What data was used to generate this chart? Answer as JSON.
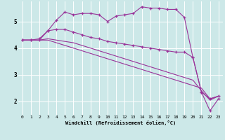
{
  "xlabel": "Windchill (Refroidissement éolien,°C)",
  "background_color": "#cce8e8",
  "line_color": "#993399",
  "grid_color": "#aadddd",
  "xlim": [
    -0.5,
    23.5
  ],
  "ylim": [
    1.5,
    5.75
  ],
  "yticks": [
    2,
    3,
    4,
    5
  ],
  "xticks": [
    0,
    1,
    2,
    3,
    4,
    5,
    6,
    7,
    8,
    9,
    10,
    11,
    12,
    13,
    14,
    15,
    16,
    17,
    18,
    19,
    20,
    21,
    22,
    23
  ],
  "line1_x": [
    0,
    1,
    2,
    3,
    4,
    5,
    6,
    7,
    8,
    9,
    10,
    11,
    12,
    13,
    14,
    15,
    16,
    17,
    18,
    19,
    20,
    21,
    22,
    23
  ],
  "line1_y": [
    4.3,
    4.3,
    4.35,
    4.65,
    5.05,
    5.35,
    5.25,
    5.3,
    5.3,
    5.25,
    5.0,
    5.2,
    5.25,
    5.3,
    5.55,
    5.5,
    5.5,
    5.45,
    5.45,
    5.15,
    3.65,
    2.35,
    1.65,
    2.1
  ],
  "line2_x": [
    0,
    1,
    2,
    3,
    4,
    5,
    6,
    7,
    8,
    9,
    10,
    11,
    12,
    13,
    14,
    15,
    16,
    17,
    18,
    19,
    20,
    21,
    22,
    23
  ],
  "line2_y": [
    4.3,
    4.3,
    4.3,
    4.65,
    4.7,
    4.7,
    4.6,
    4.5,
    4.4,
    4.35,
    4.25,
    4.2,
    4.15,
    4.1,
    4.05,
    4.0,
    3.95,
    3.9,
    3.85,
    3.85,
    3.65,
    2.35,
    2.1,
    2.2
  ],
  "line3_x": [
    0,
    1,
    2,
    3,
    4,
    5,
    6,
    7,
    8,
    9,
    10,
    11,
    12,
    13,
    14,
    15,
    16,
    17,
    18,
    19,
    20,
    21,
    22,
    23
  ],
  "line3_y": [
    4.3,
    4.3,
    4.3,
    4.35,
    4.3,
    4.25,
    4.2,
    4.1,
    4.0,
    3.9,
    3.8,
    3.7,
    3.6,
    3.5,
    3.4,
    3.3,
    3.2,
    3.1,
    3.0,
    2.9,
    2.8,
    2.4,
    2.05,
    2.2
  ],
  "line4_x": [
    0,
    1,
    2,
    3,
    4,
    5,
    6,
    7,
    8,
    9,
    10,
    11,
    12,
    13,
    14,
    15,
    16,
    17,
    18,
    19,
    20,
    21,
    22,
    23
  ],
  "line4_y": [
    4.3,
    4.3,
    4.3,
    4.3,
    4.2,
    4.1,
    4.0,
    3.9,
    3.8,
    3.7,
    3.6,
    3.5,
    3.4,
    3.3,
    3.2,
    3.1,
    3.0,
    2.9,
    2.8,
    2.7,
    2.6,
    2.5,
    2.1,
    2.2
  ]
}
